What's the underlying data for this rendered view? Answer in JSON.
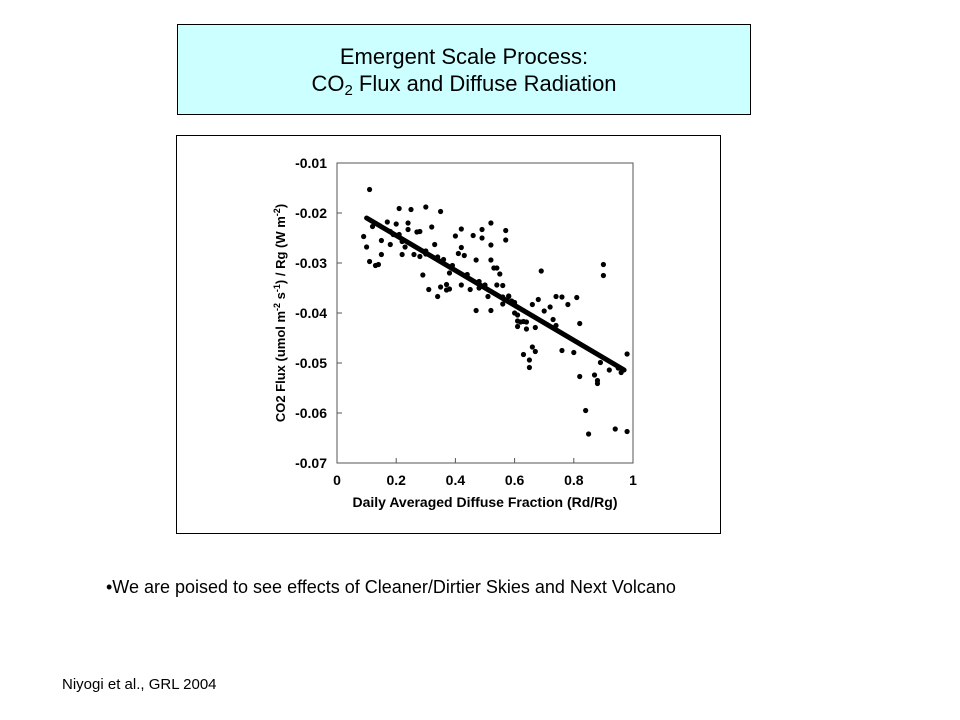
{
  "slide": {
    "title_line1": "Emergent Scale Process:",
    "title_line2_pre": "CO",
    "title_line2_sub": "2",
    "title_line2_post": " Flux and Diffuse Radiation",
    "bullet": "•We are poised to see effects of Cleaner/Dirtier Skies and Next Volcano",
    "citation": "Niyogi et al., GRL 2004",
    "title_bg": "#ccffff"
  },
  "chart_data": {
    "type": "scatter",
    "xlabel": "Daily Averaged Diffuse Fraction (Rd/Rg)",
    "ylabel_parts": [
      "CO2 Flux (umol m",
      "-2",
      " s",
      "-1",
      ") / Rg  (W m",
      "-2",
      ")"
    ],
    "xlim": [
      0,
      1
    ],
    "ylim": [
      -0.07,
      -0.01
    ],
    "x_ticks": [
      0,
      0.2,
      0.4,
      0.6,
      0.8,
      1
    ],
    "x_tick_labels": [
      "0",
      "0.2",
      "0.4",
      "0.6",
      "0.8",
      "1"
    ],
    "y_ticks": [
      -0.01,
      -0.02,
      -0.03,
      -0.04,
      -0.05,
      -0.06,
      -0.07
    ],
    "y_tick_labels": [
      "-0.01",
      "-0.02",
      "-0.03",
      "-0.04",
      "-0.05",
      "-0.06",
      "-0.07"
    ],
    "trend_line": {
      "x": [
        0.1,
        0.97
      ],
      "y": [
        -0.021,
        -0.0514
      ]
    },
    "points": [
      [
        0.11,
        -0.0153
      ],
      [
        0.09,
        -0.0247
      ],
      [
        0.1,
        -0.0268
      ],
      [
        0.11,
        -0.0297
      ],
      [
        0.13,
        -0.0305
      ],
      [
        0.14,
        -0.0303
      ],
      [
        0.12,
        -0.0227
      ],
      [
        0.15,
        -0.0255
      ],
      [
        0.15,
        -0.0283
      ],
      [
        0.17,
        -0.0218
      ],
      [
        0.18,
        -0.0237
      ],
      [
        0.18,
        -0.0263
      ],
      [
        0.19,
        -0.0243
      ],
      [
        0.2,
        -0.0222
      ],
      [
        0.21,
        -0.0191
      ],
      [
        0.21,
        -0.0243
      ],
      [
        0.22,
        -0.0257
      ],
      [
        0.22,
        -0.0283
      ],
      [
        0.23,
        -0.0268
      ],
      [
        0.24,
        -0.022
      ],
      [
        0.24,
        -0.0233
      ],
      [
        0.25,
        -0.0193
      ],
      [
        0.26,
        -0.0283
      ],
      [
        0.27,
        -0.0238
      ],
      [
        0.28,
        -0.0237
      ],
      [
        0.28,
        -0.0287
      ],
      [
        0.29,
        -0.0324
      ],
      [
        0.3,
        -0.0188
      ],
      [
        0.3,
        -0.0276
      ],
      [
        0.3,
        -0.0282
      ],
      [
        0.31,
        -0.0353
      ],
      [
        0.32,
        -0.0228
      ],
      [
        0.33,
        -0.0263
      ],
      [
        0.34,
        -0.0288
      ],
      [
        0.34,
        -0.0367
      ],
      [
        0.35,
        -0.0197
      ],
      [
        0.35,
        -0.0348
      ],
      [
        0.36,
        -0.0293
      ],
      [
        0.37,
        -0.0343
      ],
      [
        0.37,
        -0.0354
      ],
      [
        0.38,
        -0.0352
      ],
      [
        0.38,
        -0.032
      ],
      [
        0.39,
        -0.0305
      ],
      [
        0.4,
        -0.0246
      ],
      [
        0.41,
        -0.0281
      ],
      [
        0.42,
        -0.0232
      ],
      [
        0.42,
        -0.0269
      ],
      [
        0.42,
        -0.0344
      ],
      [
        0.43,
        -0.0285
      ],
      [
        0.44,
        -0.0323
      ],
      [
        0.45,
        -0.0353
      ],
      [
        0.46,
        -0.0245
      ],
      [
        0.47,
        -0.0294
      ],
      [
        0.47,
        -0.0395
      ],
      [
        0.48,
        -0.0337
      ],
      [
        0.48,
        -0.035
      ],
      [
        0.49,
        -0.025
      ],
      [
        0.49,
        -0.0233
      ],
      [
        0.5,
        -0.0344
      ],
      [
        0.51,
        -0.0367
      ],
      [
        0.52,
        -0.022
      ],
      [
        0.52,
        -0.0264
      ],
      [
        0.52,
        -0.0294
      ],
      [
        0.52,
        -0.0395
      ],
      [
        0.53,
        -0.031
      ],
      [
        0.54,
        -0.031
      ],
      [
        0.54,
        -0.0344
      ],
      [
        0.55,
        -0.0322
      ],
      [
        0.56,
        -0.0382
      ],
      [
        0.56,
        -0.0345
      ],
      [
        0.56,
        -0.0368
      ],
      [
        0.57,
        -0.0235
      ],
      [
        0.57,
        -0.0254
      ],
      [
        0.58,
        -0.0367
      ],
      [
        0.58,
        -0.0366
      ],
      [
        0.59,
        -0.0376
      ],
      [
        0.6,
        -0.0379
      ],
      [
        0.6,
        -0.04
      ],
      [
        0.61,
        -0.0404
      ],
      [
        0.61,
        -0.0416
      ],
      [
        0.61,
        -0.0427
      ],
      [
        0.62,
        -0.0418
      ],
      [
        0.63,
        -0.0417
      ],
      [
        0.63,
        -0.0483
      ],
      [
        0.64,
        -0.0418
      ],
      [
        0.64,
        -0.0432
      ],
      [
        0.65,
        -0.0494
      ],
      [
        0.65,
        -0.0509
      ],
      [
        0.66,
        -0.0468
      ],
      [
        0.66,
        -0.0383
      ],
      [
        0.67,
        -0.0429
      ],
      [
        0.67,
        -0.0477
      ],
      [
        0.68,
        -0.0373
      ],
      [
        0.69,
        -0.0316
      ],
      [
        0.7,
        -0.0396
      ],
      [
        0.72,
        -0.0388
      ],
      [
        0.73,
        -0.0413
      ],
      [
        0.74,
        -0.0425
      ],
      [
        0.74,
        -0.0367
      ],
      [
        0.76,
        -0.0368
      ],
      [
        0.76,
        -0.0475
      ],
      [
        0.78,
        -0.0383
      ],
      [
        0.8,
        -0.0479
      ],
      [
        0.81,
        -0.0369
      ],
      [
        0.82,
        -0.0421
      ],
      [
        0.82,
        -0.0527
      ],
      [
        0.84,
        -0.0595
      ],
      [
        0.85,
        -0.0642
      ],
      [
        0.87,
        -0.0524
      ],
      [
        0.88,
        -0.0541
      ],
      [
        0.88,
        -0.0535
      ],
      [
        0.89,
        -0.0499
      ],
      [
        0.9,
        -0.0303
      ],
      [
        0.9,
        -0.0325
      ],
      [
        0.92,
        -0.0514
      ],
      [
        0.94,
        -0.0632
      ],
      [
        0.95,
        -0.051
      ],
      [
        0.96,
        -0.0519
      ],
      [
        0.98,
        -0.0482
      ],
      [
        0.98,
        -0.0637
      ]
    ]
  }
}
